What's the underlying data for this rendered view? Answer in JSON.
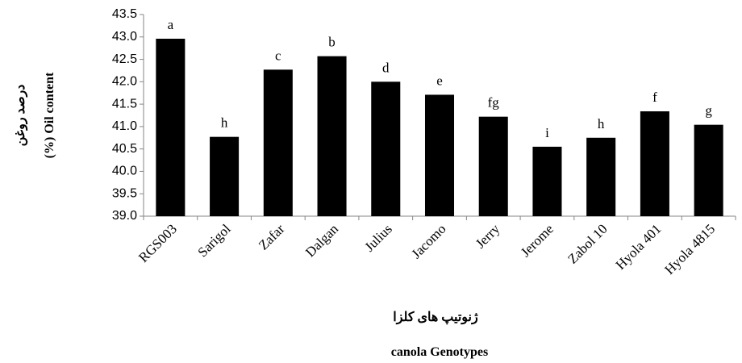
{
  "chart_data": {
    "type": "bar",
    "ylabel_fa": "درصد روغن",
    "ylabel": "(%) Oil  content",
    "xlabel_fa": "ژنوتیپ های کلزا",
    "xlabel": "canola Genotypes",
    "categories": [
      "RGS003",
      "Sarigol",
      "Zafar",
      "Dalgan",
      "Julius",
      "Jacomo",
      "Jerry",
      "Jerome",
      "Zabol 10",
      "Hyola 401",
      "Hyola 4815"
    ],
    "values": [
      42.96,
      40.77,
      42.27,
      42.57,
      42.0,
      41.71,
      41.22,
      40.55,
      40.75,
      41.34,
      41.04
    ],
    "annotations": [
      "a",
      "h",
      "c",
      "b",
      "d",
      "e",
      "fg",
      "i",
      "h",
      "f",
      "g"
    ],
    "color": "#000000",
    "ylim": [
      39,
      43.5
    ],
    "yticks": [
      {
        "value": 39,
        "label": "39.0"
      },
      39.5,
      {
        "value": 40,
        "label": "40.0"
      },
      40.5,
      {
        "value": 41,
        "label": "41.0"
      },
      41.5,
      {
        "value": 42,
        "label": "42.0"
      },
      42.5,
      {
        "value": 43,
        "label": "43.0"
      },
      43.5
    ],
    "grid": false
  }
}
